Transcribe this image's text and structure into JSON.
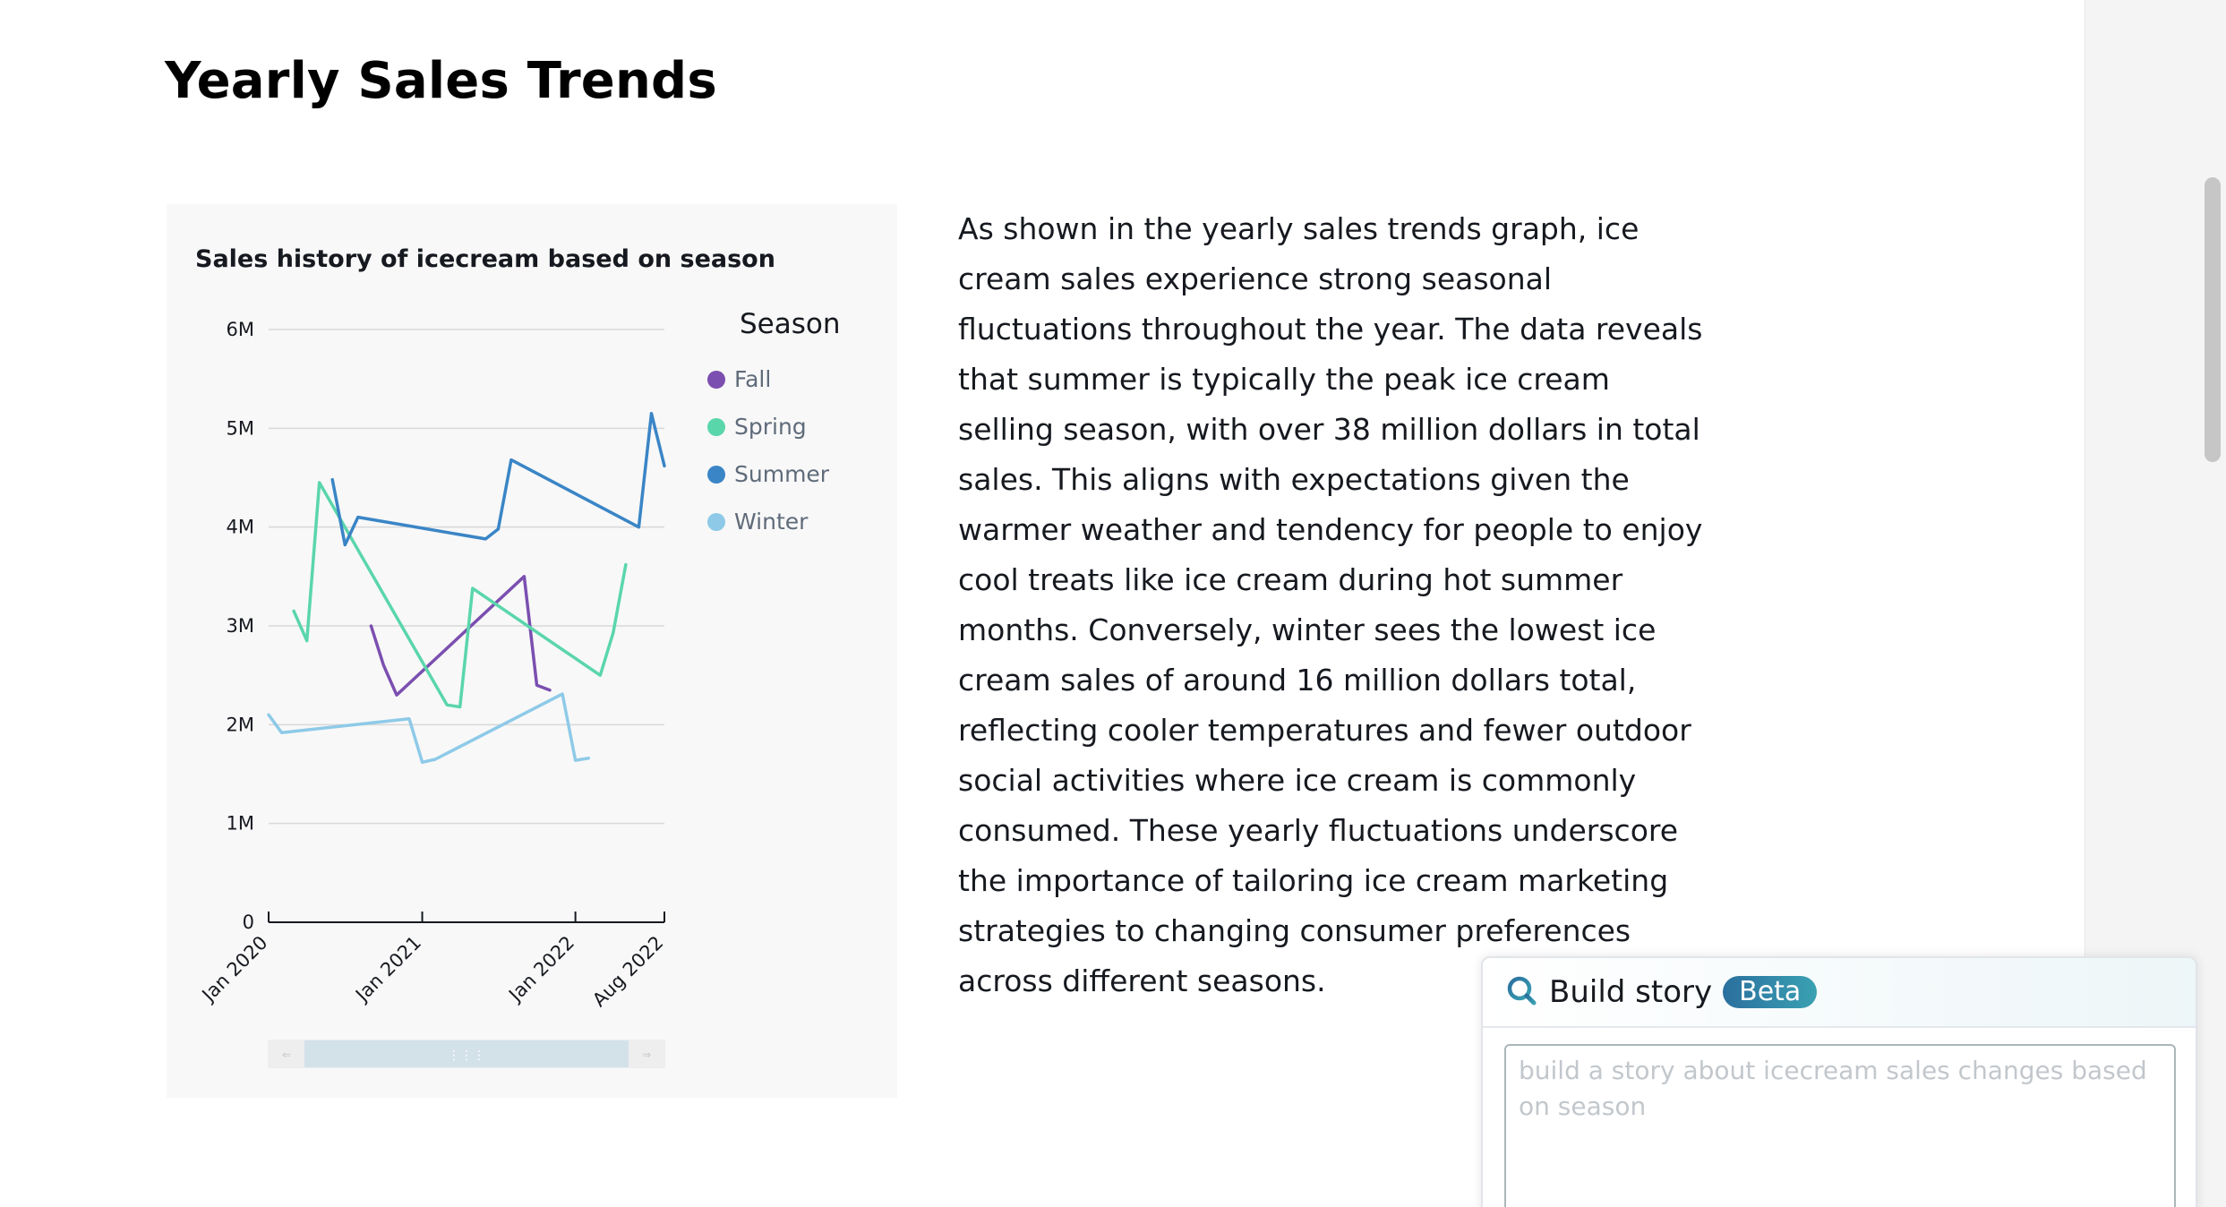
{
  "page": {
    "title": "Yearly Sales Trends",
    "story_text": "As shown in the yearly sales trends graph, ice cream sales experience strong seasonal fluctuations throughout the year. The data reveals that summer is typically the peak ice cream selling season, with over 38 million dollars in total sales. This aligns with expectations given the warmer weather and tendency for people to enjoy cool treats like ice cream during hot summer months. Conversely, winter sees the lowest ice cream sales of around 16 million dollars total, reflecting cooler temperatures and fewer outdoor social activities where ice cream is commonly consumed. These yearly fluctuations underscore the importance of tailoring ice cream marketing strategies to changing consumer preferences across different seasons."
  },
  "build_story": {
    "title": "Build story",
    "badge": "Beta",
    "placeholder": "build a story about icecream sales changes based on season",
    "icon": "search-icon"
  },
  "colors": {
    "fall": "#7b4fb0",
    "spring": "#5ad6ab",
    "summer": "#3a85c6",
    "winter": "#8ecae8"
  },
  "chart_data": {
    "type": "line",
    "title": "Sales history of icecream based on season",
    "xlabel": "",
    "ylabel": "",
    "x_range": [
      "2020-01-01",
      "2022-08-01"
    ],
    "x_ticks": [
      "Jan 2020",
      "Jan 2021",
      "Jan 2022",
      "Aug 2022"
    ],
    "x_tick_dates": [
      "2020-01-01",
      "2021-01-01",
      "2022-01-01",
      "2022-08-01"
    ],
    "ylim": [
      0,
      6000000
    ],
    "y_ticks": [
      0,
      1000000,
      2000000,
      3000000,
      4000000,
      5000000,
      6000000
    ],
    "y_tick_labels": [
      "0",
      "1M",
      "2M",
      "3M",
      "4M",
      "5M",
      "6M"
    ],
    "grid": true,
    "legend": {
      "title": "Season",
      "placement": "right"
    },
    "range_slider": true,
    "series": [
      {
        "name": "Fall",
        "color": "#7b4fb0",
        "points": [
          [
            "2020-09-01",
            3000000
          ],
          [
            "2020-10-01",
            2600000
          ],
          [
            "2020-11-01",
            2300000
          ],
          [
            "2021-09-01",
            3500000
          ],
          [
            "2021-10-01",
            2400000
          ],
          [
            "2021-11-01",
            2350000
          ]
        ]
      },
      {
        "name": "Spring",
        "color": "#5ad6ab",
        "points": [
          [
            "2020-03-01",
            3150000
          ],
          [
            "2020-04-01",
            2850000
          ],
          [
            "2020-05-01",
            4450000
          ],
          [
            "2021-03-01",
            2200000
          ],
          [
            "2021-04-01",
            2180000
          ],
          [
            "2021-05-01",
            3380000
          ],
          [
            "2022-03-01",
            2500000
          ],
          [
            "2022-04-01",
            2930000
          ],
          [
            "2022-05-01",
            3620000
          ]
        ]
      },
      {
        "name": "Summer",
        "color": "#3a85c6",
        "points": [
          [
            "2020-06-01",
            4480000
          ],
          [
            "2020-07-01",
            3820000
          ],
          [
            "2020-08-01",
            4100000
          ],
          [
            "2021-06-01",
            3880000
          ],
          [
            "2021-07-01",
            3980000
          ],
          [
            "2021-08-01",
            4680000
          ],
          [
            "2022-06-01",
            4000000
          ],
          [
            "2022-07-01",
            5150000
          ],
          [
            "2022-08-01",
            4620000
          ]
        ]
      },
      {
        "name": "Winter",
        "color": "#8ecae8",
        "points": [
          [
            "2020-01-01",
            2100000
          ],
          [
            "2020-02-01",
            1920000
          ],
          [
            "2020-12-01",
            2060000
          ],
          [
            "2021-01-01",
            1620000
          ],
          [
            "2021-02-01",
            1650000
          ],
          [
            "2021-12-01",
            2310000
          ],
          [
            "2022-01-01",
            1640000
          ],
          [
            "2022-02-01",
            1660000
          ]
        ]
      }
    ]
  }
}
